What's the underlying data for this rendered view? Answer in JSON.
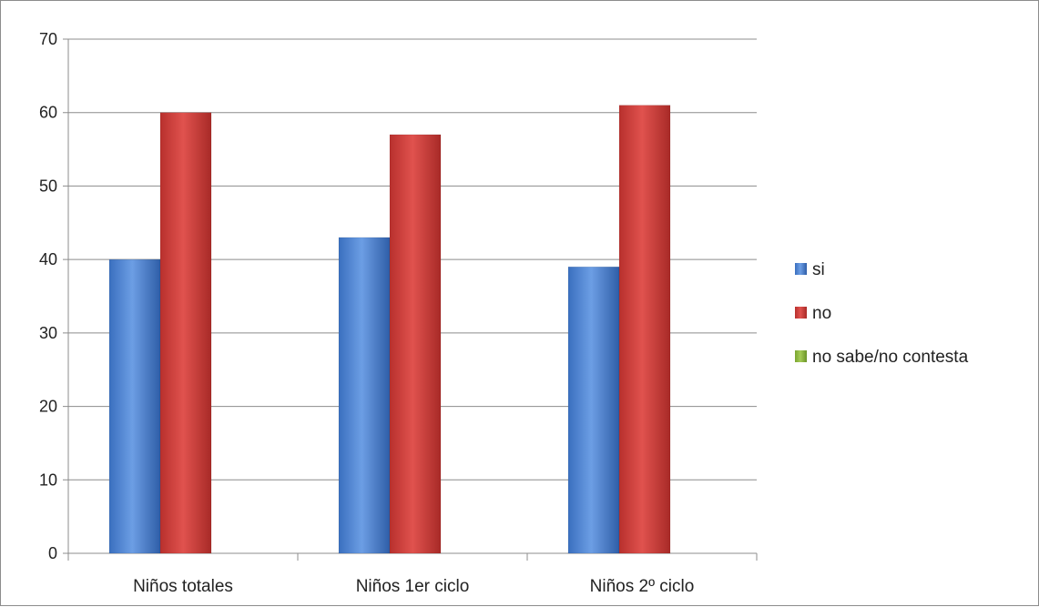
{
  "chart_data": {
    "type": "bar",
    "categories": [
      "Niños totales",
      "Niños 1er ciclo",
      "Niños 2º ciclo"
    ],
    "series": [
      {
        "name": "si",
        "values": [
          40,
          43,
          39
        ],
        "color": "#4a7fd0"
      },
      {
        "name": "no",
        "values": [
          60,
          57,
          61
        ],
        "color": "#cf3a37"
      },
      {
        "name": "no sabe/no contesta",
        "values": [
          0,
          0,
          0
        ],
        "color": "#8db640"
      }
    ],
    "ylim": [
      0,
      70
    ],
    "yticks": [
      "0",
      "10",
      "20",
      "30",
      "40",
      "50",
      "60",
      "70"
    ],
    "grid": true,
    "legend": "right",
    "title": "",
    "xlabel": "",
    "ylabel": ""
  }
}
